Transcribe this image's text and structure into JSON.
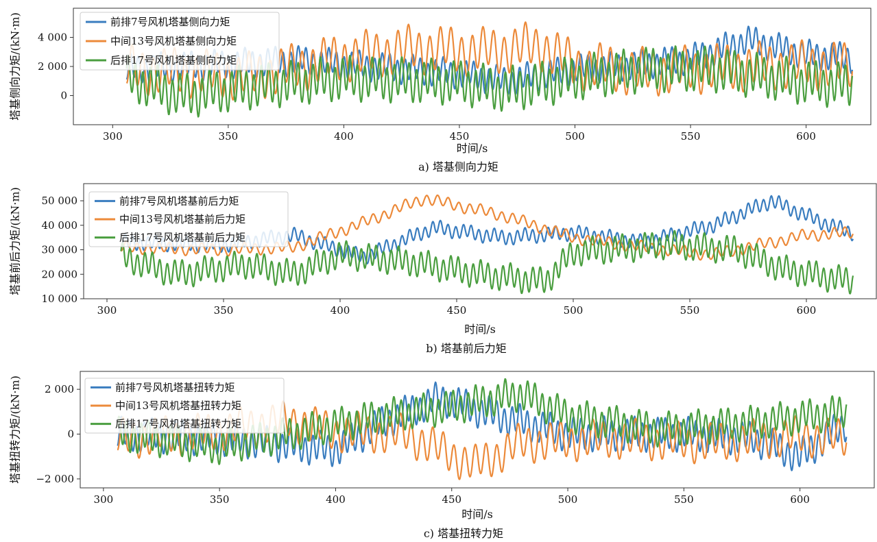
{
  "chart_data": [
    {
      "type": "line",
      "caption": "a) 塔基侧向力矩",
      "xlabel": "时间/s",
      "ylabel": "塔基侧向力矩/(kN·m)",
      "xlim": [
        283,
        628
      ],
      "ylim": [
        -2000,
        6000
      ],
      "x_ticks": [
        300,
        350,
        400,
        450,
        500,
        550,
        600
      ],
      "x_tick_labels": [
        "300",
        "350",
        "400",
        "450",
        "500",
        "550",
        "600"
      ],
      "y_ticks": [
        0,
        2000,
        4000
      ],
      "y_tick_labels": [
        "0",
        "2 000",
        "4 000"
      ],
      "legend_position": "top-left",
      "series": [
        {
          "name": "前排7号风机塔基侧向力矩",
          "color": "#3a7dbf",
          "amplitude": 800,
          "period": 3.3,
          "x": [
            306,
            340,
            380,
            420,
            450,
            470,
            500,
            520,
            550,
            575,
            590,
            600,
            620
          ],
          "y": [
            1800,
            2100,
            2400,
            1900,
            1500,
            1000,
            1800,
            2000,
            2500,
            3800,
            3200,
            2800,
            2600
          ]
        },
        {
          "name": "中间13号风机塔基侧向力矩",
          "color": "#ec8a3a",
          "amplitude": 1300,
          "period": 4.6,
          "x": [
            306,
            330,
            360,
            400,
            430,
            460,
            485,
            500,
            530,
            560,
            600,
            620
          ],
          "y": [
            1800,
            1600,
            1300,
            2600,
            3200,
            3000,
            3400,
            2100,
            1600,
            1900,
            2100,
            2000
          ]
        },
        {
          "name": "后排17号风机塔基侧向力矩",
          "color": "#4a9e3f",
          "amplitude": 1200,
          "period": 3.2,
          "x": [
            306,
            330,
            360,
            400,
            450,
            470,
            500,
            530,
            560,
            600,
            620
          ],
          "y": [
            1200,
            0,
            600,
            1200,
            900,
            400,
            1200,
            1800,
            1800,
            900,
            700
          ]
        }
      ]
    },
    {
      "type": "line",
      "caption": "b) 塔基前后力矩",
      "xlabel": "时间/s",
      "ylabel": "塔基前后力矩/(kN·m)",
      "xlim": [
        290,
        630
      ],
      "ylim": [
        10000,
        57000
      ],
      "x_ticks": [
        300,
        350,
        400,
        450,
        500,
        550,
        600
      ],
      "x_tick_labels": [
        "300",
        "350",
        "400",
        "450",
        "500",
        "550",
        "600"
      ],
      "y_ticks": [
        10000,
        20000,
        30000,
        40000,
        50000
      ],
      "y_tick_labels": [
        "10 000",
        "20 000",
        "30 000",
        "40 000",
        "50 000"
      ],
      "legend_position": "top-left",
      "series": [
        {
          "name": "前排7号风机塔基前后力矩",
          "color": "#3a7dbf",
          "amplitude": 2500,
          "period": 3.3,
          "x": [
            306,
            350,
            380,
            410,
            440,
            470,
            500,
            530,
            560,
            585,
            610,
            620
          ],
          "y": [
            33000,
            32000,
            36000,
            27000,
            39000,
            35000,
            37000,
            33000,
            40000,
            50000,
            40000,
            37000
          ]
        },
        {
          "name": "中间13号风机塔基前后力矩",
          "color": "#ec8a3a",
          "amplitude": 2000,
          "period": 4.6,
          "x": [
            306,
            350,
            380,
            410,
            436,
            470,
            500,
            530,
            560,
            600,
            620
          ],
          "y": [
            31000,
            30000,
            31000,
            41000,
            51000,
            44000,
            35000,
            31000,
            28000,
            36000,
            37000
          ]
        },
        {
          "name": "后排17号风机塔基前后力矩",
          "color": "#4a9e3f",
          "amplitude": 4500,
          "period": 3.2,
          "x": [
            306,
            330,
            360,
            380,
            400,
            430,
            460,
            488,
            500,
            540,
            570,
            590,
            620
          ],
          "y": [
            27000,
            20000,
            24000,
            20000,
            28000,
            25000,
            20000,
            17000,
            29000,
            32000,
            30000,
            22000,
            17000
          ]
        }
      ]
    },
    {
      "type": "line",
      "caption": "c) 塔基扭转力矩",
      "xlabel": "时间/s",
      "ylabel": "塔基扭转力矩/(kN·m)",
      "xlim": [
        290,
        632
      ],
      "ylim": [
        -2400,
        2800
      ],
      "x_ticks": [
        300,
        350,
        400,
        450,
        500,
        550,
        600
      ],
      "x_tick_labels": [
        "300",
        "350",
        "400",
        "450",
        "500",
        "550",
        "600"
      ],
      "y_ticks": [
        -2000,
        0,
        2000
      ],
      "y_tick_labels": [
        "−2 000",
        "0",
        "2 000"
      ],
      "legend_position": "top-left",
      "series": [
        {
          "name": "前排7号风机塔基扭转力矩",
          "color": "#3a7dbf",
          "amplitude": 600,
          "period": 3.3,
          "x": [
            306,
            350,
            400,
            420,
            445,
            470,
            500,
            550,
            580,
            600,
            620
          ],
          "y": [
            0,
            -200,
            -700,
            500,
            1600,
            800,
            0,
            0,
            -200,
            -1000,
            500
          ]
        },
        {
          "name": "中间13号风机塔基扭转力矩",
          "color": "#ec8a3a",
          "amplitude": 700,
          "period": 4.6,
          "x": [
            306,
            340,
            380,
            400,
            430,
            460,
            480,
            520,
            560,
            600,
            620
          ],
          "y": [
            -200,
            0,
            600,
            100,
            0,
            -1400,
            -400,
            -200,
            -400,
            -100,
            -200
          ]
        },
        {
          "name": "后排17号风机塔基扭转力矩",
          "color": "#4a9e3f",
          "amplitude": 600,
          "period": 3.2,
          "x": [
            306,
            350,
            380,
            420,
            450,
            480,
            500,
            540,
            580,
            620
          ],
          "y": [
            0,
            -600,
            0,
            800,
            1200,
            1800,
            800,
            200,
            500,
            1000
          ]
        }
      ]
    }
  ]
}
